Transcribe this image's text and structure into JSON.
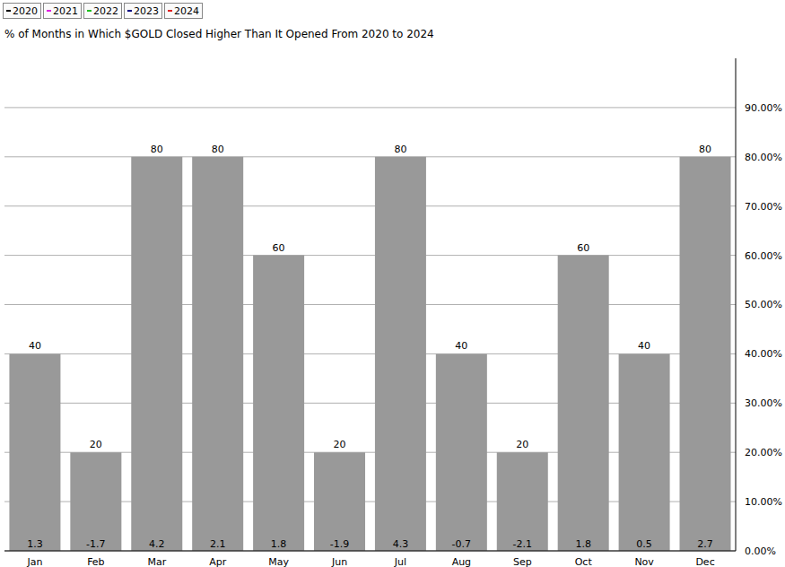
{
  "chart_data": {
    "type": "bar",
    "title": "% of Months in Which $GOLD Closed Higher Than It Opened From 2020 to 2024",
    "categories": [
      "Jan",
      "Feb",
      "Mar",
      "Apr",
      "May",
      "Jun",
      "Jul",
      "Aug",
      "Sep",
      "Oct",
      "Nov",
      "Dec"
    ],
    "values": [
      40,
      20,
      80,
      80,
      60,
      20,
      80,
      40,
      20,
      60,
      40,
      80
    ],
    "bottom_values": [
      1.3,
      -1.7,
      4.2,
      2.1,
      1.8,
      -1.9,
      4.3,
      -0.7,
      -2.1,
      1.8,
      0.5,
      2.7
    ],
    "color": "#999999",
    "ylim": [
      0,
      100
    ],
    "yticks": [
      {
        "value": 0,
        "label": "0.00%"
      },
      {
        "value": 10,
        "label": "10.00%"
      },
      {
        "value": 20,
        "label": "20.00%"
      },
      {
        "value": 30,
        "label": "30.00%"
      },
      {
        "value": 40,
        "label": "40.00%"
      },
      {
        "value": 50,
        "label": "50.00%"
      },
      {
        "value": 60,
        "label": "60.00%"
      },
      {
        "value": 70,
        "label": "70.00%"
      },
      {
        "value": 80,
        "label": "80.00%"
      },
      {
        "value": 90,
        "label": "90.00%"
      }
    ],
    "grid": true,
    "data_labels": true,
    "legend": "top-left",
    "legend_entries": [
      {
        "name": "2020",
        "color": "#000000"
      },
      {
        "name": "2021",
        "color": "#e020e0"
      },
      {
        "name": "2022",
        "color": "#20c020"
      },
      {
        "name": "2023",
        "color": "#000080"
      },
      {
        "name": "2024",
        "color": "#e02020"
      }
    ]
  }
}
